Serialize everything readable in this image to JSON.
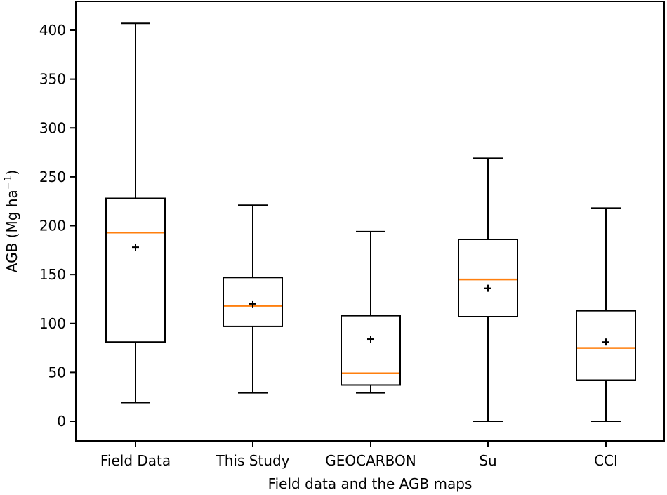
{
  "chart_data": {
    "type": "boxplot",
    "title": "",
    "xlabel": "Field data and the AGB maps",
    "ylabel_main": "AGB (Mg ha",
    "ylabel_sup": "−1",
    "ylabel_close": ")",
    "ylim": [
      -20,
      420
    ],
    "yticks": [
      0,
      50,
      100,
      150,
      200,
      250,
      300,
      350,
      400
    ],
    "ytick_labels": [
      "0",
      "50",
      "100",
      "150",
      "200",
      "250",
      "300",
      "350",
      "400"
    ],
    "median_color": "#ff7f0e",
    "mean_marker": "+",
    "categories": [
      "Field Data",
      "This Study",
      "GEOCARBON",
      "Su",
      "CCI"
    ],
    "boxes": [
      {
        "label": "Field Data",
        "whisker_low": 19,
        "q1": 81,
        "median": 193,
        "q3": 228,
        "whisker_high": 407,
        "mean": 178
      },
      {
        "label": "This Study",
        "whisker_low": 29,
        "q1": 97,
        "median": 118,
        "q3": 147,
        "whisker_high": 221,
        "mean": 120
      },
      {
        "label": "GEOCARBON",
        "whisker_low": 29,
        "q1": 37,
        "median": 49,
        "q3": 108,
        "whisker_high": 194,
        "mean": 84
      },
      {
        "label": "Su",
        "whisker_low": 0,
        "q1": 107,
        "median": 145,
        "q3": 186,
        "whisker_high": 269,
        "mean": 136
      },
      {
        "label": "CCI",
        "whisker_low": 0,
        "q1": 42,
        "median": 75,
        "q3": 113,
        "whisker_high": 218,
        "mean": 81
      }
    ]
  }
}
